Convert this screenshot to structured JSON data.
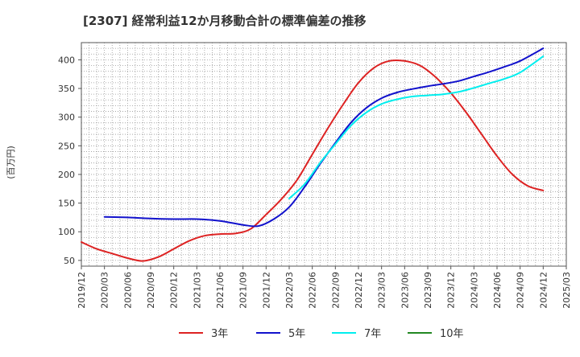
{
  "chart_data": {
    "type": "line",
    "title": "[2307]  経常利益12か月移動合計の標準偏差の推移",
    "ylabel": "(百万円)",
    "xlabel": "",
    "ylim": [
      40,
      430
    ],
    "yticks": [
      50,
      100,
      150,
      200,
      250,
      300,
      350,
      400
    ],
    "xlim": [
      "2019-12",
      "2025-03"
    ],
    "xticks": [
      "2019/12",
      "2020/03",
      "2020/06",
      "2020/09",
      "2020/12",
      "2021/03",
      "2021/06",
      "2021/09",
      "2021/12",
      "2022/03",
      "2022/06",
      "2022/09",
      "2022/12",
      "2023/03",
      "2023/06",
      "2023/09",
      "2023/12",
      "2024/03",
      "2024/06",
      "2024/09",
      "2024/12",
      "2025/03"
    ],
    "grid": true,
    "legend_position": "bottom",
    "series": [
      {
        "name": "3年",
        "color": "#dd2222",
        "points": [
          [
            "2019-12",
            82
          ],
          [
            "2020-02",
            70
          ],
          [
            "2020-04",
            62
          ],
          [
            "2020-06",
            54
          ],
          [
            "2020-08",
            49
          ],
          [
            "2020-10",
            56
          ],
          [
            "2020-12",
            70
          ],
          [
            "2021-02",
            84
          ],
          [
            "2021-04",
            93
          ],
          [
            "2021-06",
            96
          ],
          [
            "2021-08",
            97
          ],
          [
            "2021-10",
            105
          ],
          [
            "2021-12",
            130
          ],
          [
            "2022-02",
            157
          ],
          [
            "2022-04",
            190
          ],
          [
            "2022-06",
            235
          ],
          [
            "2022-08",
            280
          ],
          [
            "2022-10",
            322
          ],
          [
            "2022-12",
            360
          ],
          [
            "2023-02",
            386
          ],
          [
            "2023-04",
            398
          ],
          [
            "2023-06",
            398
          ],
          [
            "2023-08",
            390
          ],
          [
            "2023-10",
            370
          ],
          [
            "2023-12",
            342
          ],
          [
            "2024-02",
            308
          ],
          [
            "2024-04",
            270
          ],
          [
            "2024-06",
            232
          ],
          [
            "2024-08",
            200
          ],
          [
            "2024-10",
            180
          ],
          [
            "2024-12",
            172
          ]
        ]
      },
      {
        "name": "5年",
        "color": "#1111cc",
        "points": [
          [
            "2020-03",
            126
          ],
          [
            "2020-06",
            125
          ],
          [
            "2020-09",
            123
          ],
          [
            "2020-12",
            122
          ],
          [
            "2021-03",
            122
          ],
          [
            "2021-06",
            119
          ],
          [
            "2021-09",
            112
          ],
          [
            "2021-11",
            110
          ],
          [
            "2022-01",
            122
          ],
          [
            "2022-03",
            143
          ],
          [
            "2022-05",
            178
          ],
          [
            "2022-07",
            218
          ],
          [
            "2022-09",
            255
          ],
          [
            "2022-11",
            290
          ],
          [
            "2023-01",
            316
          ],
          [
            "2023-03",
            333
          ],
          [
            "2023-05",
            343
          ],
          [
            "2023-07",
            349
          ],
          [
            "2023-09",
            354
          ],
          [
            "2023-11",
            358
          ],
          [
            "2024-01",
            363
          ],
          [
            "2024-03",
            371
          ],
          [
            "2024-05",
            379
          ],
          [
            "2024-07",
            388
          ],
          [
            "2024-09",
            398
          ],
          [
            "2024-12",
            420
          ]
        ]
      },
      {
        "name": "7年",
        "color": "#00eeee",
        "points": [
          [
            "2022-03",
            158
          ],
          [
            "2022-05",
            183
          ],
          [
            "2022-07",
            220
          ],
          [
            "2022-09",
            253
          ],
          [
            "2022-11",
            285
          ],
          [
            "2023-01",
            308
          ],
          [
            "2023-03",
            323
          ],
          [
            "2023-05",
            331
          ],
          [
            "2023-07",
            336
          ],
          [
            "2023-09",
            338
          ],
          [
            "2023-11",
            340
          ],
          [
            "2024-01",
            344
          ],
          [
            "2024-03",
            351
          ],
          [
            "2024-05",
            359
          ],
          [
            "2024-07",
            367
          ],
          [
            "2024-09",
            378
          ],
          [
            "2024-12",
            406
          ]
        ]
      },
      {
        "name": "10年",
        "color": "#228822",
        "points": []
      }
    ]
  }
}
